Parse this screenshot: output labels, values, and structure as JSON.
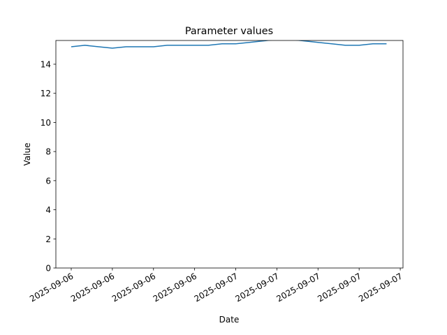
{
  "chart_data": {
    "type": "line",
    "title": "Parameter values",
    "xlabel": "Date",
    "ylabel": "Value",
    "x": [
      0,
      1,
      2,
      3,
      4,
      5,
      6,
      7,
      8,
      9,
      10,
      11,
      12,
      13,
      14,
      15,
      16,
      17,
      18,
      19,
      20,
      21,
      22,
      23
    ],
    "series": [
      {
        "name": "Value",
        "color": "#1f77b4",
        "values": [
          15.2,
          15.3,
          15.2,
          15.1,
          15.2,
          15.2,
          15.2,
          15.3,
          15.3,
          15.3,
          15.3,
          15.4,
          15.4,
          15.5,
          15.6,
          15.7,
          15.7,
          15.6,
          15.5,
          15.4,
          15.3,
          15.3,
          15.4,
          15.4
        ]
      }
    ],
    "xlim": [
      -1.12,
      24.2
    ],
    "xticks": [
      {
        "value": 0,
        "label": "2025-09-06"
      },
      {
        "value": 3,
        "label": "2025-09-06"
      },
      {
        "value": 6,
        "label": "2025-09-06"
      },
      {
        "value": 9,
        "label": "2025-09-06"
      },
      {
        "value": 12,
        "label": "2025-09-07"
      },
      {
        "value": 15,
        "label": "2025-09-07"
      },
      {
        "value": 18,
        "label": "2025-09-07"
      },
      {
        "value": 21,
        "label": "2025-09-07"
      },
      {
        "value": 24,
        "label": "2025-09-07"
      }
    ],
    "ylim": [
      0,
      15.63
    ],
    "yticks": [
      0,
      2,
      4,
      6,
      8,
      10,
      12,
      14
    ],
    "grid": false
  }
}
